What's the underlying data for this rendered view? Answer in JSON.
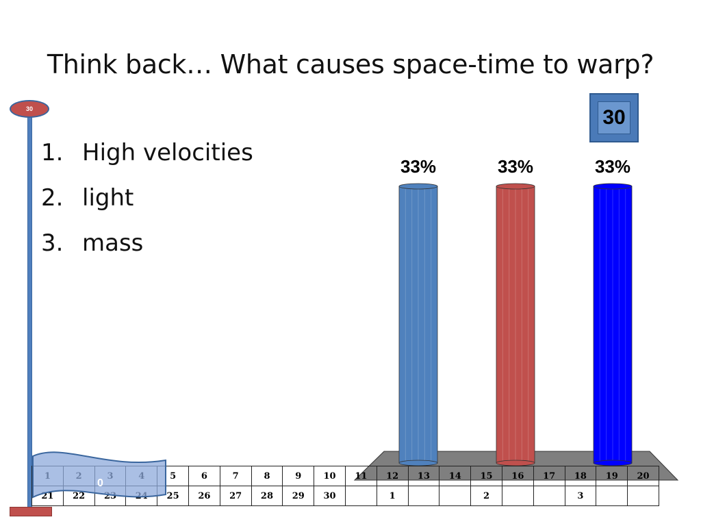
{
  "slide": {
    "title": "Think back… What causes space-time to warp?"
  },
  "answers": [
    {
      "number": "1.",
      "text": "High velocities"
    },
    {
      "number": "2.",
      "text": "light"
    },
    {
      "number": "3.",
      "text": "mass"
    }
  ],
  "countdown": {
    "value": "30",
    "timer_cap_label": "30",
    "flag_label": "0"
  },
  "grid": {
    "row1": [
      "1",
      "2",
      "3",
      "4",
      "5",
      "6",
      "7",
      "8",
      "9",
      "10",
      "11",
      "12",
      "13",
      "14",
      "15",
      "16",
      "17",
      "18",
      "19",
      "20"
    ],
    "row2": [
      "21",
      "22",
      "23",
      "24",
      "25",
      "26",
      "27",
      "28",
      "29",
      "30",
      "",
      "1",
      "",
      "",
      "2",
      "",
      "",
      "3",
      "",
      ""
    ]
  },
  "colors": {
    "bar1": "#4f81bd",
    "bar2": "#c0504d",
    "bar3": "#0000ff",
    "floor": "#7f7f7f"
  },
  "chart_data": {
    "type": "bar",
    "categories": [
      "1",
      "2",
      "3"
    ],
    "values": [
      33,
      33,
      33
    ],
    "data_labels": [
      "33%",
      "33%",
      "33%"
    ],
    "ylim": [
      0,
      33
    ],
    "grid": false
  }
}
